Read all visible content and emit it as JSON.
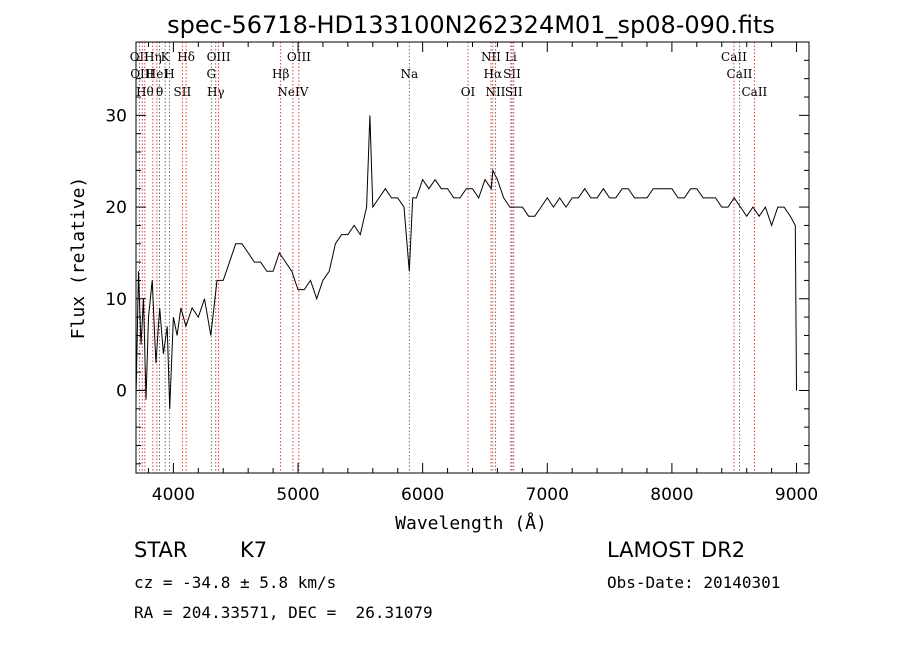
{
  "chart_data": {
    "type": "line",
    "title": "spec-56718-HD133100N262324M01_sp08-090.fits",
    "xlabel": "Wavelength (Å)",
    "ylabel": "Flux (relative)",
    "xlim": [
      3700,
      9100
    ],
    "ylim": [
      -9,
      38
    ],
    "x_ticks": [
      4000,
      5000,
      6000,
      7000,
      8000,
      9000
    ],
    "y_ticks": [
      0,
      10,
      20,
      30
    ],
    "grid": false,
    "series": [
      {
        "x": [
          3700,
          3720,
          3740,
          3760,
          3780,
          3800,
          3830,
          3860,
          3890,
          3920,
          3950,
          3970,
          4000,
          4030,
          4060,
          4100,
          4150,
          4200,
          4250,
          4300,
          4350,
          4400,
          4450,
          4500,
          4550,
          4600,
          4650,
          4700,
          4750,
          4800,
          4850,
          4900,
          4950,
          5000,
          5050,
          5100,
          5150,
          5200,
          5250,
          5300,
          5350,
          5400,
          5450,
          5500,
          5550,
          5577,
          5600,
          5650,
          5700,
          5750,
          5800,
          5850,
          5893,
          5920,
          5950,
          6000,
          6050,
          6100,
          6150,
          6200,
          6250,
          6300,
          6350,
          6400,
          6450,
          6500,
          6550,
          6563,
          6600,
          6650,
          6700,
          6750,
          6800,
          6850,
          6900,
          6950,
          7000,
          7050,
          7100,
          7150,
          7200,
          7250,
          7300,
          7350,
          7400,
          7450,
          7500,
          7550,
          7600,
          7650,
          7700,
          7750,
          7800,
          7850,
          7900,
          7950,
          8000,
          8050,
          8100,
          8150,
          8200,
          8250,
          8300,
          8350,
          8400,
          8450,
          8500,
          8550,
          8600,
          8650,
          8700,
          8750,
          8800,
          8850,
          8900,
          8950,
          8990,
          9000
        ],
        "y": [
          -1,
          13,
          5,
          10,
          -1,
          8,
          12,
          3,
          9,
          4,
          7,
          -2,
          8,
          6,
          9,
          7,
          9,
          8,
          10,
          6,
          12,
          12,
          14,
          16,
          16,
          15,
          14,
          14,
          13,
          13,
          15,
          14,
          13,
          11,
          11,
          12,
          10,
          12,
          13,
          16,
          17,
          17,
          18,
          17,
          20,
          30,
          20,
          21,
          22,
          21,
          21,
          20,
          13,
          21,
          21,
          23,
          22,
          23,
          22,
          22,
          21,
          21,
          22,
          22,
          21,
          23,
          22,
          24,
          23,
          21,
          20,
          20,
          20,
          19,
          19,
          20,
          21,
          20,
          21,
          20,
          21,
          21,
          22,
          21,
          21,
          22,
          21,
          21,
          22,
          22,
          21,
          21,
          21,
          22,
          22,
          22,
          22,
          21,
          21,
          22,
          22,
          21,
          21,
          21,
          20,
          20,
          21,
          20,
          19,
          20,
          19,
          20,
          18,
          20,
          20,
          19,
          18,
          0
        ]
      }
    ],
    "lines": [
      {
        "w": 3727,
        "labels": [
          "OII"
        ]
      },
      {
        "w": 3750,
        "labels": [
          "OIII"
        ]
      },
      {
        "w": 3771,
        "labels": [
          "Hθ"
        ]
      },
      {
        "w": 3835,
        "labels": [
          "Hη"
        ]
      },
      {
        "w": 3868,
        "labels": [
          "HeI"
        ]
      },
      {
        "w": 3889,
        "labels": [
          "θ"
        ]
      },
      {
        "w": 3934,
        "labels": [
          "K"
        ]
      },
      {
        "w": 3969,
        "labels": [
          "H"
        ]
      },
      {
        "w": 4072,
        "labels": [
          "SII"
        ]
      },
      {
        "w": 4102,
        "labels": [
          "Hδ"
        ]
      },
      {
        "w": 4304,
        "labels": [
          "G"
        ]
      },
      {
        "w": 4340,
        "labels": [
          "Hγ"
        ]
      },
      {
        "w": 4363,
        "labels": [
          "OIII"
        ]
      },
      {
        "w": 4861,
        "labels": [
          "Hβ"
        ]
      },
      {
        "w": 4959,
        "labels": [
          "NeIV"
        ]
      },
      {
        "w": 5007,
        "labels": [
          "OIII"
        ]
      },
      {
        "w": 5893,
        "labels": [
          "Na"
        ]
      },
      {
        "w": 6364,
        "labels": [
          "OI"
        ]
      },
      {
        "w": 6548,
        "labels": [
          "NII"
        ]
      },
      {
        "w": 6563,
        "labels": [
          "Hα"
        ]
      },
      {
        "w": 6584,
        "labels": [
          "NII"
        ]
      },
      {
        "w": 6708,
        "labels": [
          "Li"
        ]
      },
      {
        "w": 6717,
        "labels": [
          "SII"
        ]
      },
      {
        "w": 6731,
        "labels": [
          "SII"
        ]
      },
      {
        "w": 8498,
        "labels": [
          "CaII"
        ]
      },
      {
        "w": 8542,
        "labels": [
          "CaII"
        ]
      },
      {
        "w": 8662,
        "labels": [
          "CaII"
        ]
      }
    ]
  },
  "info": {
    "object_class": "STAR",
    "subclass": "K7",
    "survey": "LAMOST DR2",
    "cz": "cz = -34.8 ± 5.8 km/s",
    "obs_date": "Obs-Date: 20140301",
    "coords": "RA = 204.33571, DEC =  26.31079"
  }
}
